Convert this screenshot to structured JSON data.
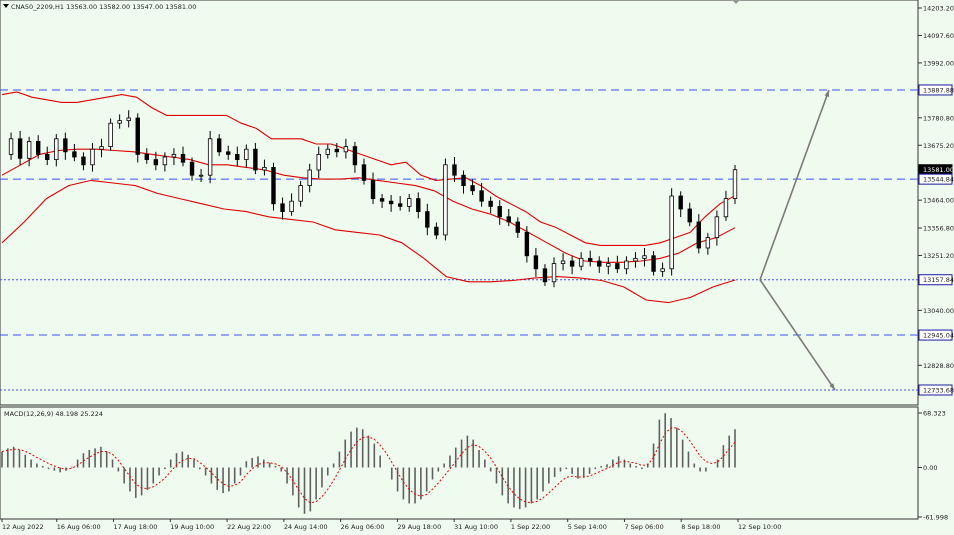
{
  "header": {
    "symbol_info": "CNA50_2209,H1  13563.00 13582.00 13547.00 13581.00",
    "macd_info": "MACD(12,26,9) 48.198 25.224"
  },
  "colors": {
    "background": "#f0fbef",
    "bollinger": "#e00000",
    "candle": "#000000",
    "level_line": "#3a50ff",
    "arrow": "#7a7a7a",
    "signal_line": "#e00000",
    "histogram": "#606060",
    "price_tag_bg": "#1a1aa0",
    "current_tag_bg": "#000000"
  },
  "chart_data": [
    {
      "type": "candlestick",
      "title": "CNA50_2209,H1",
      "ylim": [
        12650,
        14240
      ],
      "y_ticks": [
        "14203.20",
        "14097.60",
        "13992.00",
        "13887.88",
        "13780.80",
        "13675.20",
        "13581.00",
        "13544.84",
        "13464.00",
        "13356.80",
        "13251.20",
        "13157.84",
        "13040.00",
        "12945.04",
        "12828.80",
        "12733.68"
      ],
      "x_ticks": [
        "12 Aug 2022",
        "16 Aug 06:00",
        "17 Aug 18:00",
        "19 Aug 10:00",
        "22 Aug 22:00",
        "24 Aug 14:00",
        "26 Aug 06:00",
        "29 Aug 18:00",
        "31 Aug 10:00",
        "1 Sep 22:00",
        "5 Sep 14:00",
        "7 Sep 06:00",
        "8 Sep 18:00",
        "12 Sep 10:00"
      ],
      "levels": [
        {
          "value": 13887.88,
          "style": "dashed"
        },
        {
          "value": 13544.84,
          "style": "dashed"
        },
        {
          "value": 13157.84,
          "style": "dotted"
        },
        {
          "value": 12945.04,
          "style": "dashed"
        },
        {
          "value": 12733.68,
          "style": "dotted"
        }
      ],
      "current_price": 13581.0,
      "close_series": [
        13640,
        13700,
        13625,
        13690,
        13640,
        13620,
        13700,
        13650,
        13630,
        13600,
        13660,
        13670,
        13760,
        13770,
        13780,
        13640,
        13620,
        13600,
        13630,
        13640,
        13610,
        13560,
        13560,
        13700,
        13650,
        13640,
        13620,
        13660,
        13580,
        13590,
        13450,
        13420,
        13460,
        13520,
        13580,
        13640,
        13660,
        13650,
        13670,
        13600,
        13540,
        13470,
        13460,
        13450,
        13440,
        13470,
        13420,
        13360,
        13330,
        13600,
        13560,
        13520,
        13500,
        13460,
        13440,
        13400,
        13380,
        13340,
        13250,
        13200,
        13150,
        13220,
        13230,
        13210,
        13240,
        13230,
        13210,
        13220,
        13200,
        13230,
        13240,
        13250,
        13190,
        13200,
        13480,
        13430,
        13380,
        13280,
        13320,
        13400,
        13470,
        13581
      ],
      "upper_band": [
        13870,
        13880,
        13860,
        13850,
        13840,
        13840,
        13850,
        13860,
        13870,
        13860,
        13820,
        13790,
        13790,
        13790,
        13790,
        13790,
        13760,
        13740,
        13700,
        13700,
        13700,
        13680,
        13680,
        13660,
        13640,
        13620,
        13600,
        13610,
        13560,
        13540,
        13545,
        13550,
        13520,
        13480,
        13450,
        13420,
        13380,
        13360,
        13330,
        13300,
        13290,
        13290,
        13290,
        13290,
        13300,
        13320,
        13340,
        13400,
        13450,
        13481
      ],
      "middle_band": [
        13560,
        13600,
        13640,
        13655,
        13660,
        13660,
        13655,
        13650,
        13640,
        13630,
        13620,
        13600,
        13600,
        13590,
        13580,
        13560,
        13550,
        13545,
        13545,
        13550,
        13540,
        13530,
        13520,
        13500,
        13460,
        13430,
        13410,
        13380,
        13340,
        13300,
        13260,
        13230,
        13225,
        13225,
        13230,
        13240,
        13260,
        13300,
        13320,
        13358
      ],
      "lower_band": [
        13300,
        13380,
        13470,
        13520,
        13540,
        13530,
        13520,
        13490,
        13470,
        13450,
        13430,
        13420,
        13400,
        13390,
        13380,
        13350,
        13340,
        13330,
        13300,
        13240,
        13170,
        13150,
        13150,
        13155,
        13165,
        13170,
        13165,
        13155,
        13130,
        13080,
        13070,
        13090,
        13130,
        13157
      ],
      "projection": [
        {
          "from_date": "12 Sep 10:00",
          "from": 13157.84,
          "to": 13887.88
        },
        {
          "from_date": "12 Sep 10:00",
          "from": 13157.84,
          "to": 12733.68
        }
      ]
    },
    {
      "type": "bar",
      "title": "MACD(12,26,9)",
      "series": [
        {
          "name": "MACD",
          "value": 48.198
        },
        {
          "name": "Signal",
          "value": 25.224
        }
      ],
      "ylim": [
        -61.998,
        68.323
      ],
      "y_ticks": [
        "68.323",
        "0.00",
        "-61.998"
      ],
      "histogram": [
        20,
        24,
        26,
        22,
        16,
        10,
        5,
        2,
        -2,
        -4,
        -6,
        -4,
        1,
        10,
        18,
        22,
        24,
        26,
        20,
        10,
        -5,
        -20,
        -30,
        -38,
        -35,
        -28,
        -20,
        -10,
        -2,
        10,
        18,
        20,
        16,
        10,
        -2,
        -10,
        -20,
        -28,
        -32,
        -30,
        -20,
        -10,
        8,
        12,
        14,
        10,
        6,
        2,
        -5,
        -20,
        -35,
        -50,
        -58,
        -55,
        -40,
        -25,
        -10,
        5,
        20,
        35,
        45,
        50,
        48,
        40,
        30,
        15,
        0,
        -15,
        -30,
        -40,
        -45,
        -45,
        -40,
        -30,
        -15,
        -5,
        5,
        15,
        25,
        35,
        40,
        35,
        22,
        10,
        -5,
        -20,
        -35,
        -45,
        -50,
        -52,
        -50,
        -45,
        -40,
        -30,
        -20,
        -12,
        -5,
        -2,
        -8,
        -14,
        -12,
        -8,
        -2,
        2,
        4,
        10,
        14,
        10,
        5,
        2,
        -2,
        5,
        30,
        60,
        68,
        62,
        50,
        35,
        20,
        5,
        -5,
        -5,
        0,
        10,
        28,
        40,
        48
      ]
    }
  ],
  "price_tags": [
    {
      "label": "14203.20",
      "value": 14203.2,
      "highlight": false
    },
    {
      "label": "14097.60",
      "value": 14097.6,
      "highlight": false
    },
    {
      "label": "13992.00",
      "value": 13992.0,
      "highlight": false
    },
    {
      "label": "13887.88",
      "value": 13887.88,
      "highlight": true
    },
    {
      "label": "13780.80",
      "value": 13780.8,
      "highlight": false
    },
    {
      "label": "13675.20",
      "value": 13675.2,
      "highlight": false
    },
    {
      "label": "13581.00",
      "value": 13581.0,
      "highlight": "current"
    },
    {
      "label": "13544.84",
      "value": 13544.84,
      "highlight": true
    },
    {
      "label": "13464.00",
      "value": 13464.0,
      "highlight": false
    },
    {
      "label": "13356.80",
      "value": 13356.8,
      "highlight": false
    },
    {
      "label": "13251.20",
      "value": 13251.2,
      "highlight": false
    },
    {
      "label": "13157.84",
      "value": 13157.84,
      "highlight": true
    },
    {
      "label": "13040.00",
      "value": 13040.0,
      "highlight": false
    },
    {
      "label": "12945.04",
      "value": 12945.04,
      "highlight": true
    },
    {
      "label": "12828.80",
      "value": 12828.8,
      "highlight": false
    },
    {
      "label": "12733.68",
      "value": 12733.68,
      "highlight": true
    }
  ]
}
